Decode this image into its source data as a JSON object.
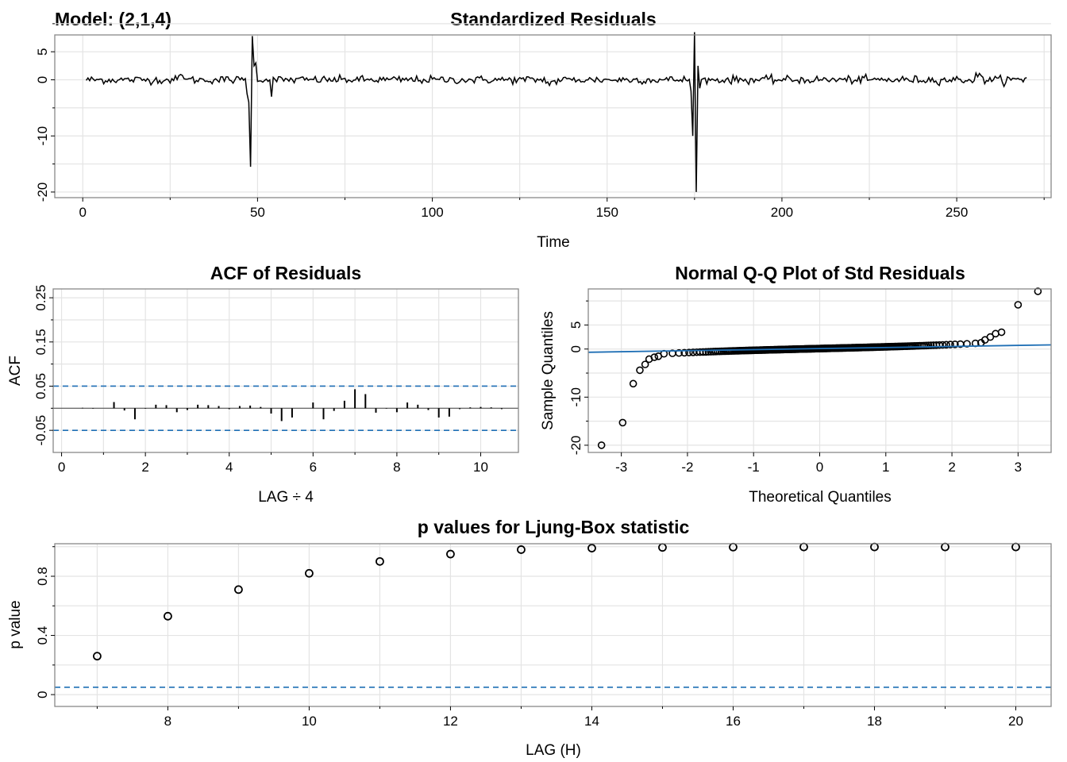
{
  "model_label": "Model: (2,1,4)",
  "colors": {
    "series": "#000000",
    "reference": "#1f6fb5",
    "grid": "#e4e4e4",
    "frame": "#888888"
  },
  "chart_data": [
    {
      "type": "line",
      "title": "Standardized Residuals",
      "xlabel": "Time",
      "ylabel": "",
      "xlim": [
        -8,
        277
      ],
      "ylim": [
        -21,
        8
      ],
      "xticks": [
        0,
        50,
        100,
        150,
        200,
        250
      ],
      "yticks": [
        -20,
        -10,
        0,
        5
      ],
      "x_range": [
        1,
        270
      ],
      "spikes": [
        {
          "x": 47,
          "y": -2.5
        },
        {
          "x": 47.5,
          "y": -4
        },
        {
          "x": 48,
          "y": -15.5
        },
        {
          "x": 48.5,
          "y": 7.8
        },
        {
          "x": 49,
          "y": 2.5
        },
        {
          "x": 49.5,
          "y": 3
        },
        {
          "x": 54,
          "y": -3
        },
        {
          "x": 174,
          "y": -2
        },
        {
          "x": 174.5,
          "y": -10
        },
        {
          "x": 175,
          "y": 8.5
        },
        {
          "x": 175.5,
          "y": -20
        },
        {
          "x": 176,
          "y": 2.5
        },
        {
          "x": 176.5,
          "y": -1.5
        }
      ],
      "grid": true
    },
    {
      "type": "bar",
      "title": "ACF of Residuals",
      "xlabel": "LAG ÷ 4",
      "ylabel": "ACF",
      "xlim": [
        -0.2,
        10.9
      ],
      "ylim": [
        -0.1,
        0.27
      ],
      "xticks": [
        0,
        2,
        4,
        6,
        8,
        10
      ],
      "yticks": [
        -0.05,
        0.05,
        0.15,
        0.25
      ],
      "lags": [
        0.5,
        0.75,
        1,
        1.25,
        1.5,
        1.75,
        2,
        2.25,
        2.5,
        2.75,
        3,
        3.25,
        3.5,
        3.75,
        4,
        4.25,
        4.5,
        4.75,
        5,
        5.25,
        5.5,
        5.75,
        6,
        6.25,
        6.5,
        6.75,
        7,
        7.25,
        7.5,
        7.75,
        8,
        8.25,
        8.5,
        8.75,
        9,
        9.25,
        9.5,
        9.75,
        10,
        10.25,
        10.5
      ],
      "values": [
        0.001,
        -0.001,
        0.0,
        0.014,
        -0.005,
        -0.025,
        -0.001,
        0.008,
        0.007,
        -0.009,
        -0.004,
        0.008,
        0.007,
        0.005,
        -0.002,
        0.005,
        0.006,
        0.003,
        -0.012,
        -0.029,
        -0.021,
        0.0,
        0.013,
        -0.025,
        -0.006,
        0.017,
        0.043,
        0.032,
        -0.01,
        -0.001,
        -0.009,
        0.013,
        0.008,
        -0.004,
        -0.021,
        -0.019,
        -0.002,
        0.002,
        0.003,
        0.002,
        -0.002
      ],
      "confidence_band": [
        -0.05,
        0.05
      ],
      "grid": true
    },
    {
      "type": "scatter",
      "title": "Normal Q-Q Plot of Std Residuals",
      "xlabel": "Theoretical Quantiles",
      "ylabel": "Sample Quantiles",
      "xlim": [
        -3.5,
        3.5
      ],
      "ylim": [
        -21.5,
        12.5
      ],
      "xticks": [
        -3,
        -2,
        -1,
        0,
        1,
        2,
        3
      ],
      "yticks": [
        -20,
        -10,
        0,
        5
      ],
      "n_points": 270,
      "reference_line": {
        "intercept": 0.1,
        "slope": 0.22
      },
      "tail_points": [
        {
          "x": -3.3,
          "y": -20
        },
        {
          "x": -2.98,
          "y": -15.3
        },
        {
          "x": -2.82,
          "y": -7.2
        },
        {
          "x": -2.72,
          "y": -4.4
        },
        {
          "x": -2.64,
          "y": -3.2
        },
        {
          "x": -2.58,
          "y": -2.1
        },
        {
          "x": -2.5,
          "y": -1.7
        },
        {
          "x": -2.44,
          "y": -1.5
        },
        {
          "x": 2.44,
          "y": 1.3
        },
        {
          "x": 2.5,
          "y": 1.9
        },
        {
          "x": 2.58,
          "y": 2.5
        },
        {
          "x": 2.66,
          "y": 3.2
        },
        {
          "x": 2.75,
          "y": 3.5
        },
        {
          "x": 3.0,
          "y": 9.2
        },
        {
          "x": 3.3,
          "y": 12.0
        }
      ],
      "grid": true
    },
    {
      "type": "scatter",
      "title": "p values for Ljung-Box statistic",
      "xlabel": "LAG (H)",
      "ylabel": "p value",
      "xlim": [
        6.4,
        20.5
      ],
      "ylim": [
        -0.08,
        1.02
      ],
      "xticks": [
        8,
        10,
        12,
        14,
        16,
        18,
        20
      ],
      "yticks": [
        0.0,
        0.4,
        0.8
      ],
      "x": [
        7,
        8,
        9,
        10,
        11,
        12,
        13,
        14,
        15,
        16,
        17,
        18,
        19,
        20
      ],
      "y": [
        0.26,
        0.53,
        0.71,
        0.82,
        0.9,
        0.95,
        0.98,
        0.99,
        0.995,
        0.997,
        0.998,
        0.998,
        0.998,
        0.998
      ],
      "reference_line": 0.05,
      "grid": true
    }
  ]
}
